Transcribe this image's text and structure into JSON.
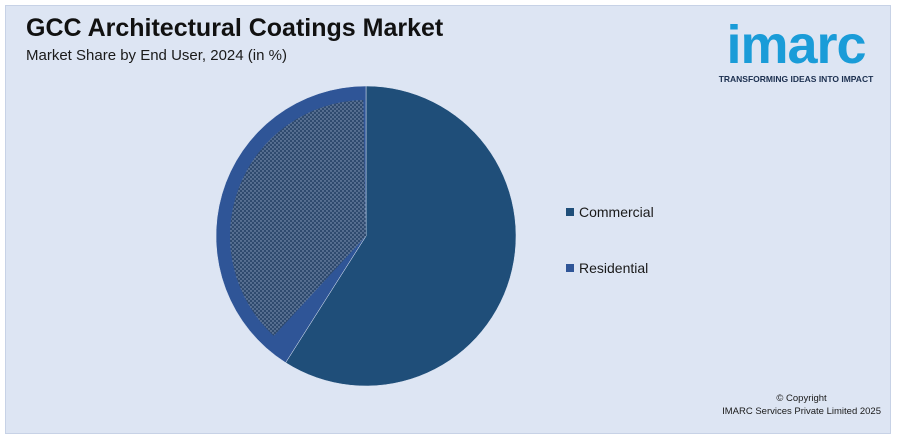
{
  "header": {
    "title": "GCC Architectural Coatings Market",
    "subtitle": "Market Share by End User, 2024 (in %)"
  },
  "logo": {
    "wordmark": "imarc",
    "tagline": "TRANSFORMING IDEAS INTO IMPACT"
  },
  "footer": {
    "copyright_line1": "© Copyright",
    "copyright_line2": "IMARC Services Private Limited 2025"
  },
  "chart_data": {
    "type": "pie",
    "title": "GCC Architectural Coatings Market",
    "subtitle": "Market Share by End User, 2024 (in %)",
    "series": [
      {
        "name": "Commercial",
        "value": 59,
        "color": "#1f4e79"
      },
      {
        "name": "Residential",
        "value": 41,
        "color": "#2f5597"
      }
    ],
    "legend_position": "right"
  },
  "colors": {
    "background": "#dde5f3",
    "commercial": "#1f4e79",
    "residential": "#2f5597",
    "logo_blue": "#1a9cd8"
  }
}
